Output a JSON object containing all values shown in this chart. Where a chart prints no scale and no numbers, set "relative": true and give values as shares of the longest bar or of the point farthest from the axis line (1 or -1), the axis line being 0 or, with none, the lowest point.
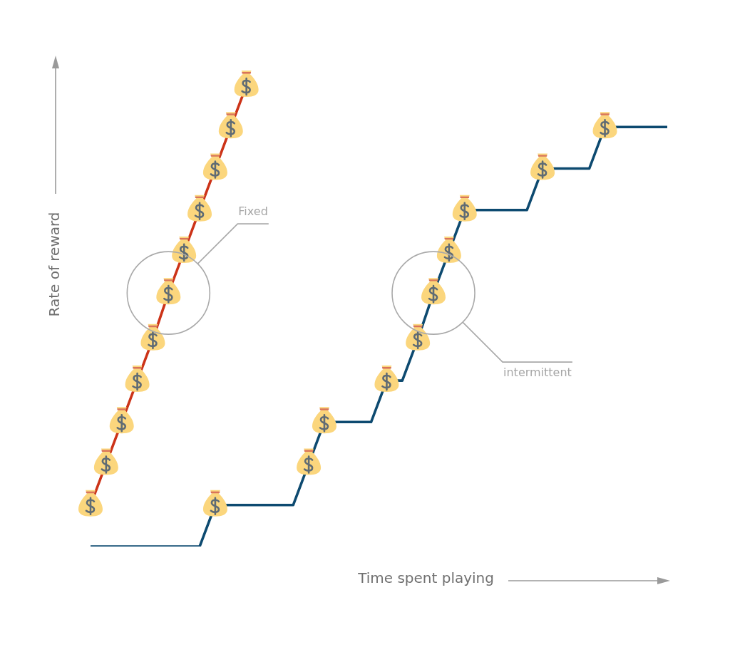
{
  "chart_data": {
    "type": "line",
    "relative": true,
    "xlabel": "Time spent playing",
    "ylabel": "Rate of reward",
    "annotations": [
      "Fixed",
      "intermittent"
    ],
    "categories": [
      null,
      null,
      null,
      null,
      null,
      null,
      null,
      null,
      null,
      null,
      null,
      null,
      null,
      null,
      null,
      null,
      null,
      null,
      null,
      null,
      null,
      null,
      null,
      null,
      null,
      null,
      null,
      null,
      null,
      null,
      null,
      null,
      null,
      null,
      null,
      null,
      null,
      null
    ],
    "series": [
      {
        "color": "#cc3318",
        "marker": "circle",
        "values": [
          0.09,
          0.18,
          0.27,
          0.36,
          0.45,
          0.55,
          0.64,
          0.73,
          0.82,
          0.91,
          1,
          null,
          null,
          null,
          null,
          null,
          null,
          null,
          null,
          null,
          null,
          null,
          null,
          null,
          null,
          null,
          null,
          null,
          null,
          null,
          null,
          null,
          null,
          null,
          null,
          null,
          null,
          null
        ]
      },
      {
        "color": "#0d4a70",
        "values": [
          0,
          0,
          0,
          0,
          0,
          0,
          0,
          0,
          0.09,
          0.09,
          0.09,
          0.09,
          0.09,
          0.09,
          0.18,
          0.27,
          0.27,
          0.27,
          0.27,
          0.36,
          0.36,
          0.45,
          0.55,
          0.64,
          0.73,
          0.73,
          0.73,
          0.73,
          0.73,
          0.82,
          0.82,
          0.82,
          0.82,
          0.91,
          0.91,
          0.91,
          0.91,
          0.91
        ]
      }
    ]
  }
}
